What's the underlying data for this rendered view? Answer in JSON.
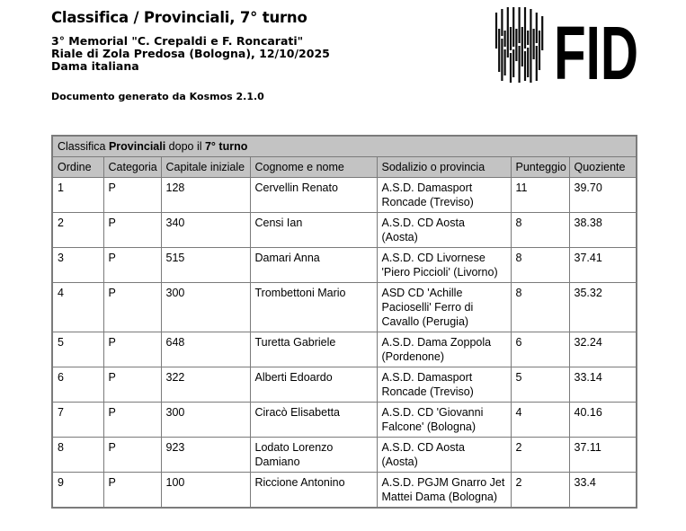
{
  "colors": {
    "header_bg": "#c3c3c3",
    "table_border": "#7b7b7b",
    "text": "#000000",
    "page_bg": "#ffffff"
  },
  "header": {
    "title": "Classifica / Provinciali, 7° turno",
    "subtitle_lines": [
      "3° Memorial \"C. Crepaldi e F. Roncarati\"",
      "Riale di Zola Predosa (Bologna), 12/10/2025",
      "Dama italiana"
    ],
    "generator_note": "Documento generato da Kosmos 2.1.0"
  },
  "logo": {
    "text": "FID",
    "icon": "fid-barcode-mark"
  },
  "table": {
    "caption": {
      "part1": "Classifica ",
      "strong1": "Provinciali",
      "part2": " dopo il ",
      "strong2": "7° turno"
    },
    "columns": [
      "Ordine",
      "Categoria",
      "Capitale iniziale",
      "Cognome e nome",
      "Sodalizio o provincia",
      "Punteggio",
      "Quoziente"
    ],
    "rows": [
      {
        "ordine": "1",
        "categoria": "P",
        "capitale": "128",
        "nome": "Cervellin Renato",
        "sodalizio": "A.S.D. Damasport\nRoncade (Treviso)",
        "punteggio": "11",
        "quoziente": "39.70"
      },
      {
        "ordine": "2",
        "categoria": "P",
        "capitale": "340",
        "nome": "Censi Ian",
        "sodalizio": "A.S.D. CD Aosta\n(Aosta)",
        "punteggio": "8",
        "quoziente": "38.38"
      },
      {
        "ordine": "3",
        "categoria": "P",
        "capitale": "515",
        "nome": "Damari Anna",
        "sodalizio": "A.S.D. CD Livornese\n'Piero Piccioli' (Livorno)",
        "punteggio": "8",
        "quoziente": "37.41"
      },
      {
        "ordine": "4",
        "categoria": "P",
        "capitale": "300",
        "nome": "Trombettoni Mario",
        "sodalizio": "ASD CD 'Achille\nPacioselli' Ferro di\nCavallo (Perugia)",
        "punteggio": "8",
        "quoziente": "35.32"
      },
      {
        "ordine": "5",
        "categoria": "P",
        "capitale": "648",
        "nome": "Turetta Gabriele",
        "sodalizio": "A.S.D. Dama Zoppola\n(Pordenone)",
        "punteggio": "6",
        "quoziente": "32.24"
      },
      {
        "ordine": "6",
        "categoria": "P",
        "capitale": "322",
        "nome": "Alberti Edoardo",
        "sodalizio": "A.S.D. Damasport\nRoncade (Treviso)",
        "punteggio": "5",
        "quoziente": "33.14"
      },
      {
        "ordine": "7",
        "categoria": "P",
        "capitale": "300",
        "nome": "Ciracò Elisabetta",
        "sodalizio": "A.S.D. CD 'Giovanni\nFalcone' (Bologna)",
        "punteggio": "4",
        "quoziente": "40.16"
      },
      {
        "ordine": "8",
        "categoria": "P",
        "capitale": "923",
        "nome": "Lodato Lorenzo\nDamiano",
        "sodalizio": "A.S.D. CD Aosta\n(Aosta)",
        "punteggio": "2",
        "quoziente": "37.11"
      },
      {
        "ordine": "9",
        "categoria": "P",
        "capitale": "100",
        "nome": "Riccione Antonino",
        "sodalizio": "A.S.D. PGJM Gnarro Jet\nMattei Dama (Bologna)",
        "punteggio": "2",
        "quoziente": "33.4"
      }
    ]
  }
}
